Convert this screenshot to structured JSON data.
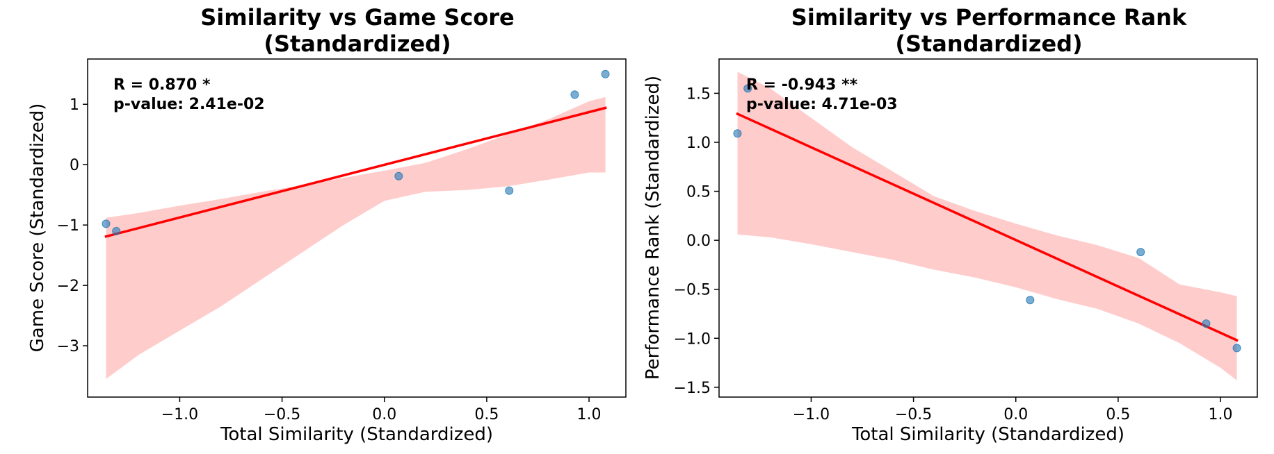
{
  "chart_data": [
    {
      "type": "scatter",
      "title_lines": [
        "Similarity vs Game Score",
        "(Standardized)"
      ],
      "xlabel": "Total Similarity (Standardized)",
      "ylabel": "Game Score (Standardized)",
      "xlim": [
        -1.45,
        1.18
      ],
      "ylim": [
        -3.85,
        1.75
      ],
      "xticks": [
        -1.0,
        -0.5,
        0.0,
        0.5,
        1.0
      ],
      "xtick_labels": [
        "−1.0",
        "−0.5",
        "0.0",
        "0.5",
        "1.0"
      ],
      "yticks": [
        -3,
        -2,
        -1,
        0,
        1
      ],
      "ytick_labels": [
        "−3",
        "−2",
        "−1",
        "0",
        "1"
      ],
      "grid": false,
      "points": {
        "color": "#1f77b4",
        "x": [
          -1.36,
          -1.31,
          0.07,
          0.61,
          0.93,
          1.08
        ],
        "y": [
          -0.98,
          -1.1,
          -0.19,
          -0.43,
          1.16,
          1.5
        ]
      },
      "regression": {
        "color": "#ff0000",
        "x": [
          -1.36,
          1.08
        ],
        "y": [
          -1.19,
          0.94
        ]
      },
      "confidence_band": {
        "color": "#ffcccc",
        "x": [
          -1.36,
          -1.2,
          -1.0,
          -0.8,
          -0.6,
          -0.4,
          -0.2,
          0.0,
          0.2,
          0.4,
          0.6,
          0.8,
          1.0,
          1.08
        ],
        "upper": [
          -0.88,
          -0.8,
          -0.68,
          -0.57,
          -0.45,
          -0.34,
          -0.22,
          -0.1,
          0.03,
          0.25,
          0.5,
          0.75,
          1.05,
          1.12
        ],
        "lower": [
          -3.55,
          -3.15,
          -2.75,
          -2.35,
          -1.9,
          -1.45,
          -1.0,
          -0.6,
          -0.45,
          -0.42,
          -0.36,
          -0.25,
          -0.13,
          -0.13
        ]
      },
      "annotation": {
        "r_text": "R = 0.870 *",
        "p_text": "p-value: 2.41e-02"
      }
    },
    {
      "type": "scatter",
      "title_lines": [
        "Similarity vs Performance Rank",
        "(Standardized)"
      ],
      "xlabel": "Total Similarity (Standardized)",
      "ylabel": "Performance Rank (Standardized)",
      "xlim": [
        -1.45,
        1.18
      ],
      "ylim": [
        -1.6,
        1.85
      ],
      "xticks": [
        -1.0,
        -0.5,
        0.0,
        0.5,
        1.0
      ],
      "xtick_labels": [
        "−1.0",
        "−0.5",
        "0.0",
        "0.5",
        "1.0"
      ],
      "yticks": [
        -1.5,
        -1.0,
        -0.5,
        0.0,
        0.5,
        1.0,
        1.5
      ],
      "ytick_labels": [
        "−1.5",
        "−1.0",
        "−0.5",
        "0.0",
        "0.5",
        "1.0",
        "1.5"
      ],
      "grid": false,
      "points": {
        "color": "#1f77b4",
        "x": [
          -1.36,
          -1.31,
          0.07,
          0.61,
          0.93,
          1.08
        ],
        "y": [
          1.09,
          1.55,
          -0.61,
          -0.12,
          -0.85,
          -1.1
        ]
      },
      "regression": {
        "color": "#ff0000",
        "x": [
          -1.36,
          1.08
        ],
        "y": [
          1.29,
          -1.02
        ]
      },
      "confidence_band": {
        "color": "#ffcccc",
        "x": [
          -1.36,
          -1.2,
          -1.0,
          -0.8,
          -0.6,
          -0.4,
          -0.2,
          0.0,
          0.2,
          0.4,
          0.6,
          0.8,
          1.0,
          1.08
        ],
        "upper": [
          1.72,
          1.55,
          1.25,
          0.95,
          0.7,
          0.45,
          0.3,
          0.17,
          0.05,
          -0.05,
          -0.18,
          -0.45,
          -0.53,
          -0.57
        ],
        "lower": [
          0.06,
          0.03,
          -0.04,
          -0.12,
          -0.2,
          -0.3,
          -0.38,
          -0.48,
          -0.6,
          -0.7,
          -0.85,
          -1.05,
          -1.3,
          -1.43
        ]
      },
      "annotation": {
        "r_text": "R = -0.943 **",
        "p_text": "p-value: 4.71e-03"
      }
    }
  ]
}
